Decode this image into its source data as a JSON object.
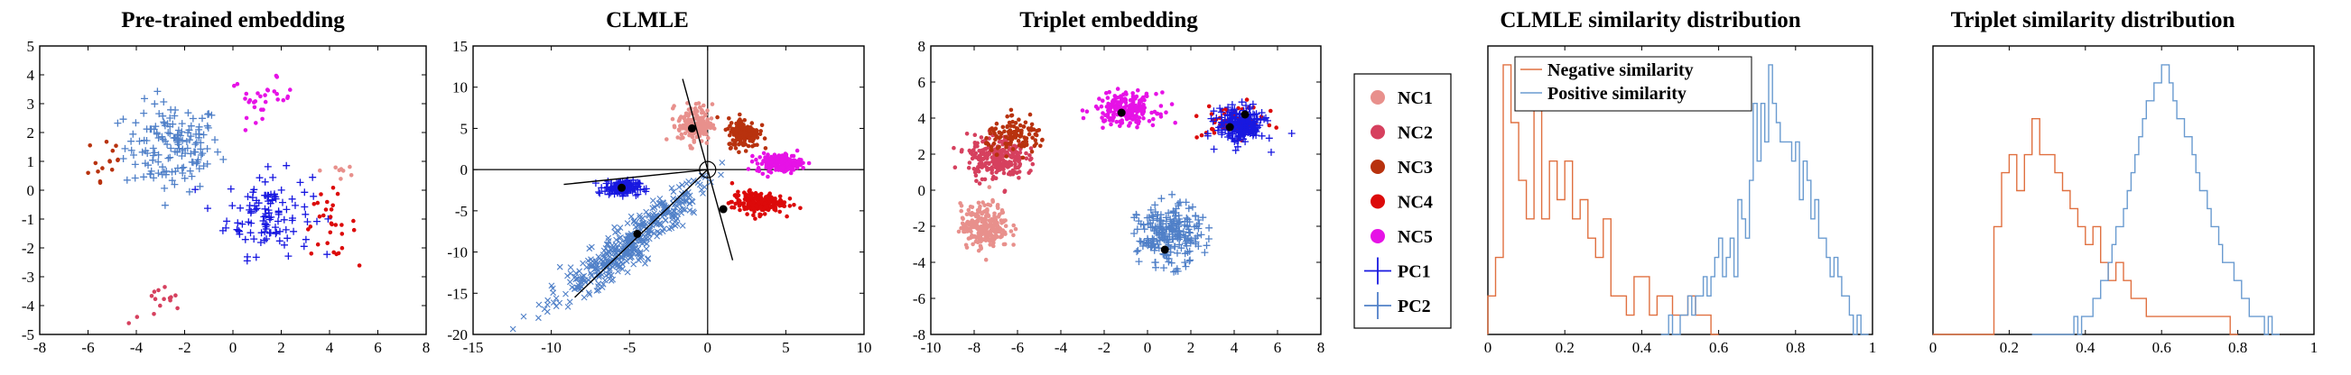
{
  "colors": {
    "NC1": "#e8908c",
    "NC2": "#d6405e",
    "NC3": "#b8320e",
    "NC4": "#dc0a0a",
    "NC5": "#e612e6",
    "PC1": "#1818e0",
    "PC2": "#5080c8",
    "negative": "#e07040",
    "positive": "#6a9bd0"
  },
  "legend": {
    "entries": [
      {
        "label": "NC1",
        "marker": "dot",
        "color_key": "NC1"
      },
      {
        "label": "NC2",
        "marker": "dot",
        "color_key": "NC2"
      },
      {
        "label": "NC3",
        "marker": "dot",
        "color_key": "NC3"
      },
      {
        "label": "NC4",
        "marker": "dot",
        "color_key": "NC4"
      },
      {
        "label": "NC5",
        "marker": "dot",
        "color_key": "NC5"
      },
      {
        "label": "PC1",
        "marker": "plus",
        "color_key": "PC1"
      },
      {
        "label": "PC2",
        "marker": "plus",
        "color_key": "PC2"
      }
    ]
  },
  "chart_data": [
    {
      "type": "scatter",
      "title": "Pre-trained embedding",
      "xlim": [
        -8,
        8
      ],
      "ylim": [
        -5,
        5
      ],
      "xticks": [
        -8,
        -6,
        -4,
        -2,
        0,
        2,
        4,
        6,
        8
      ],
      "yticks": [
        -5,
        -4,
        -3,
        -2,
        -1,
        0,
        1,
        2,
        3,
        4,
        5
      ],
      "series": [
        {
          "name": "PC2",
          "marker": "plus",
          "center": [
            -2.5,
            1.5
          ],
          "spread": [
            1.8,
            1.4
          ],
          "count": 150
        },
        {
          "name": "PC1",
          "marker": "plus",
          "center": [
            1.5,
            -0.8
          ],
          "spread": [
            1.6,
            1.3
          ],
          "count": 110
        },
        {
          "name": "NC5",
          "marker": "dot",
          "center": [
            1.2,
            3.2
          ],
          "spread": [
            1.2,
            0.6
          ],
          "count": 30
        },
        {
          "name": "NC4",
          "marker": "dot",
          "center": [
            4.0,
            -1.2
          ],
          "spread": [
            1.0,
            1.0
          ],
          "count": 30
        },
        {
          "name": "NC2",
          "marker": "dot",
          "center": [
            -3.0,
            -4.0
          ],
          "spread": [
            1.2,
            0.6
          ],
          "count": 15
        },
        {
          "name": "NC3",
          "marker": "dot",
          "center": [
            -5.3,
            1.0
          ],
          "spread": [
            0.8,
            1.2
          ],
          "count": 15
        },
        {
          "name": "NC1",
          "marker": "dot",
          "center": [
            4.5,
            0.7
          ],
          "spread": [
            0.8,
            0.5
          ],
          "count": 8
        }
      ]
    },
    {
      "type": "scatter",
      "title": "CLMLE",
      "xlim": [
        -15,
        10
      ],
      "ylim": [
        -20,
        15
      ],
      "xticks": [
        -15,
        -10,
        -5,
        0,
        5,
        10
      ],
      "yticks": [
        -20,
        -15,
        -10,
        -5,
        0,
        5,
        10,
        15
      ],
      "series": [
        {
          "name": "PC2",
          "marker": "x",
          "center": [
            -5.0,
            -9.0
          ],
          "spread": [
            1.8,
            2.6
          ],
          "count": 420
        },
        {
          "name": "PC1",
          "marker": "plus",
          "center": [
            -5.5,
            -2.2
          ],
          "spread": [
            1.0,
            0.8
          ],
          "count": 140
        },
        {
          "name": "NC1",
          "marker": "dot",
          "center": [
            -0.8,
            5.5
          ],
          "spread": [
            1.0,
            2.2
          ],
          "count": 160
        },
        {
          "name": "NC3",
          "marker": "dot",
          "center": [
            2.3,
            4.5
          ],
          "spread": [
            0.9,
            1.6
          ],
          "count": 180
        },
        {
          "name": "NC5",
          "marker": "dot",
          "center": [
            4.6,
            0.8
          ],
          "spread": [
            1.3,
            1.0
          ],
          "count": 180
        },
        {
          "name": "NC4",
          "marker": "dot",
          "center": [
            3.2,
            -4.0
          ],
          "spread": [
            1.5,
            1.2
          ],
          "count": 200
        }
      ],
      "class_centers": [
        [
          -5.5,
          -2.2
        ],
        [
          -4.5,
          -7.8
        ],
        [
          -1.0,
          5.0
        ],
        [
          1.0,
          -4.8
        ]
      ],
      "rays": [
        [
          -9.2,
          -1.8
        ],
        [
          -8.5,
          -15.5
        ],
        [
          -1.6,
          11.0
        ],
        [
          1.6,
          -11.0
        ]
      ]
    },
    {
      "type": "scatter",
      "title": "Triplet embedding",
      "xlim": [
        -10,
        8
      ],
      "ylim": [
        -8,
        8
      ],
      "xticks": [
        -10,
        -8,
        -6,
        -4,
        -2,
        0,
        2,
        4,
        6,
        8
      ],
      "yticks": [
        -8,
        -6,
        -4,
        -2,
        0,
        2,
        4,
        6,
        8
      ],
      "series": [
        {
          "name": "NC1",
          "marker": "dot",
          "center": [
            -7.5,
            -2.0
          ],
          "spread": [
            1.0,
            1.1
          ],
          "count": 250
        },
        {
          "name": "NC2",
          "marker": "dot",
          "center": [
            -7.0,
            1.8
          ],
          "spread": [
            1.2,
            1.1
          ],
          "count": 250
        },
        {
          "name": "NC3",
          "marker": "dot",
          "center": [
            -6.0,
            3.0
          ],
          "spread": [
            1.3,
            0.8
          ],
          "count": 120
        },
        {
          "name": "NC5",
          "marker": "dot",
          "center": [
            -1.0,
            4.5
          ],
          "spread": [
            1.3,
            0.8
          ],
          "count": 200
        },
        {
          "name": "NC4",
          "marker": "dot",
          "center": [
            4.0,
            3.8
          ],
          "spread": [
            1.3,
            0.8
          ],
          "count": 80
        },
        {
          "name": "PC1",
          "marker": "plus",
          "center": [
            4.3,
            3.6
          ],
          "spread": [
            1.0,
            0.9
          ],
          "count": 220
        },
        {
          "name": "PC2",
          "marker": "plus",
          "center": [
            1.0,
            -2.5
          ],
          "spread": [
            1.3,
            1.5
          ],
          "count": 220
        }
      ],
      "class_centers": [
        [
          -1.2,
          4.3
        ],
        [
          3.8,
          3.5
        ],
        [
          4.5,
          4.2
        ],
        [
          0.8,
          -3.3
        ]
      ]
    },
    {
      "type": "histogram",
      "title": "CLMLE similarity distribution",
      "xlim": [
        0,
        1
      ],
      "xticks": [
        0,
        0.2,
        0.4,
        0.6,
        0.8,
        1
      ],
      "yticks": [],
      "legend": [
        "Negative similarity",
        "Positive similarity"
      ],
      "series": [
        {
          "name": "Negative similarity",
          "color_key": "negative",
          "bin_start": 0.0,
          "bin_width": 0.02,
          "values": [
            2,
            4,
            14,
            11,
            8,
            6,
            12,
            6,
            9,
            7,
            9,
            6,
            7,
            5,
            4,
            6,
            2,
            2,
            1,
            3,
            3,
            1,
            2,
            2,
            1,
            1,
            2,
            1,
            1,
            0
          ]
        },
        {
          "name": "Positive similarity",
          "color_key": "positive",
          "bin_start": 0.45,
          "bin_width": 0.01,
          "values": [
            0,
            0,
            1,
            0,
            0,
            1,
            1,
            2,
            1,
            2,
            2,
            3,
            2,
            3,
            4,
            5,
            3,
            4,
            5,
            3,
            7,
            6,
            5,
            8,
            12,
            9,
            12,
            10,
            14,
            12,
            11,
            10,
            10,
            10,
            9,
            10,
            7,
            9,
            8,
            6,
            7,
            5,
            5,
            4,
            3,
            4,
            3,
            2,
            2,
            1,
            0,
            1,
            0,
            0
          ]
        }
      ]
    },
    {
      "type": "histogram",
      "title": "Triplet similarity distribution",
      "xlim": [
        0,
        1
      ],
      "xticks": [
        0,
        0.2,
        0.4,
        0.6,
        0.8,
        1
      ],
      "yticks": [],
      "series": [
        {
          "name": "Negative similarity",
          "color_key": "negative",
          "bin_start": 0.0,
          "bin_width": 0.02,
          "values": [
            0,
            0,
            0,
            0,
            0,
            0,
            0,
            0,
            6,
            9,
            10,
            8,
            10,
            12,
            10,
            10,
            9,
            8,
            7,
            6,
            5,
            6,
            4,
            3,
            4,
            3,
            2,
            2,
            1,
            1,
            1,
            1,
            1,
            1,
            1,
            1,
            1,
            1,
            1,
            0
          ]
        },
        {
          "name": "Positive similarity",
          "color_key": "positive",
          "bin_start": 0.26,
          "bin_width": 0.01,
          "values": [
            0,
            0,
            0,
            0,
            0,
            0,
            0,
            0,
            0,
            0,
            0,
            1,
            0,
            1,
            1,
            1,
            2,
            2,
            3,
            3,
            4,
            5,
            6,
            6,
            7,
            8,
            9,
            10,
            11,
            12,
            13,
            13,
            14,
            14,
            15,
            15,
            14,
            13,
            12,
            12,
            11,
            11,
            10,
            9,
            8,
            8,
            7,
            6,
            6,
            5,
            4,
            4,
            4,
            3,
            3,
            2,
            2,
            1,
            1,
            1,
            1,
            0,
            1,
            0,
            0
          ]
        }
      ]
    }
  ]
}
